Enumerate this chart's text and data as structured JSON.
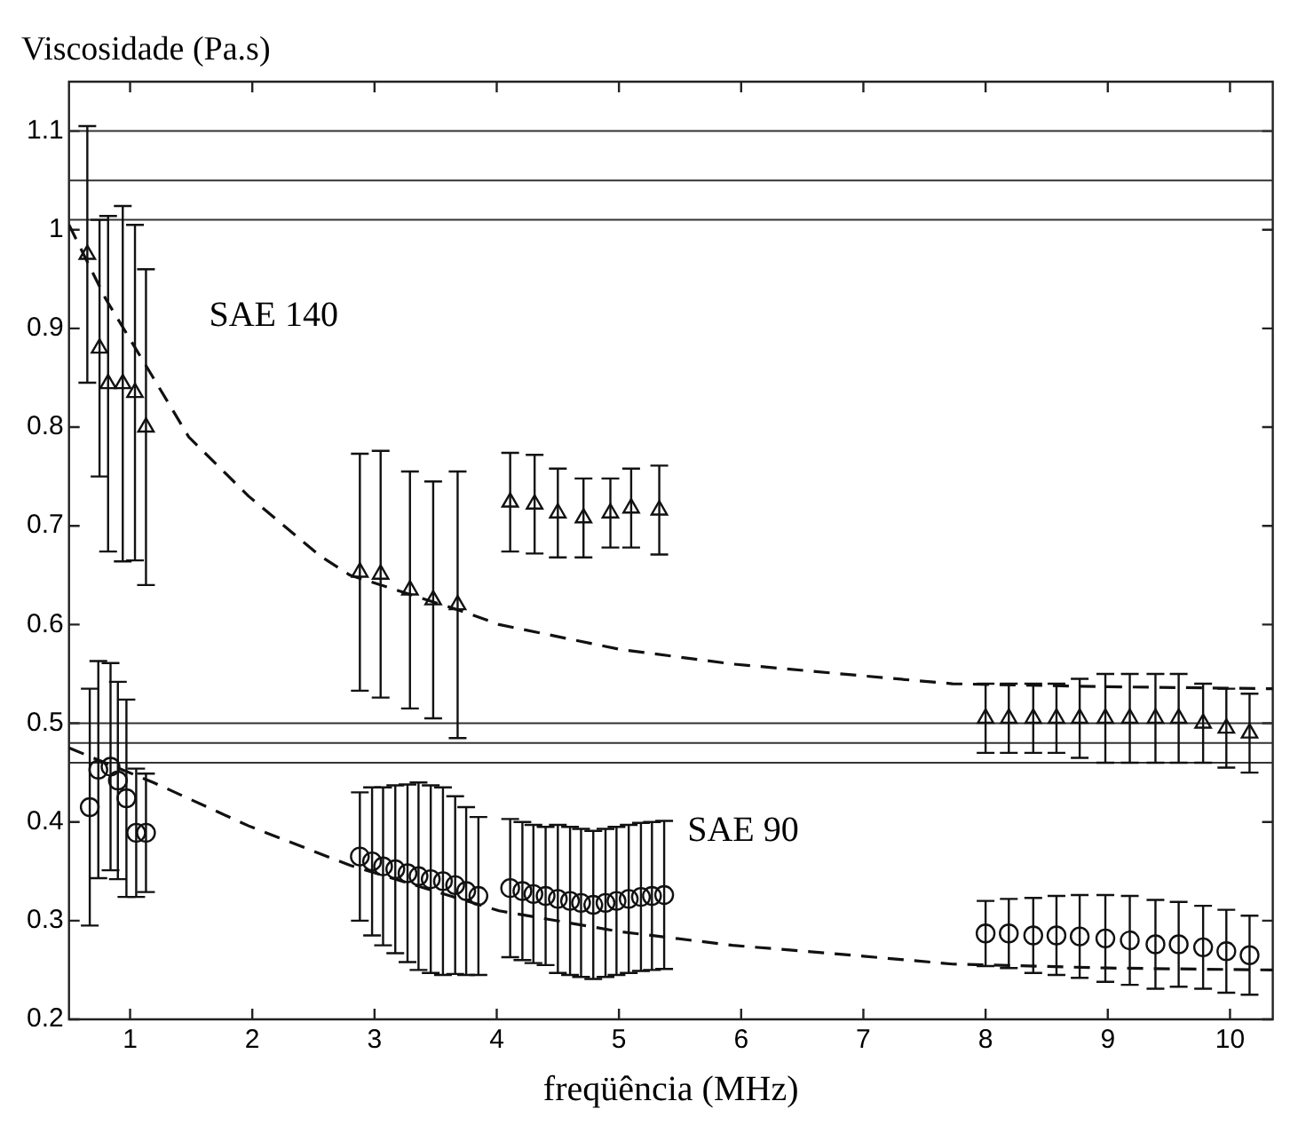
{
  "chart_data": {
    "type": "scatter",
    "xlabel": "freqüência (MHz)",
    "ylabel": "Viscosidade (Pa.s)",
    "xlim": [
      0.5,
      10.35
    ],
    "ylim": [
      0.2,
      1.15
    ],
    "xticks": [
      1,
      2,
      3,
      4,
      5,
      6,
      7,
      8,
      9,
      10
    ],
    "yticks": [
      0.2,
      0.3,
      0.4,
      0.5,
      0.6,
      0.7,
      0.8,
      0.9,
      1,
      1.1
    ],
    "grid": false,
    "legend": false,
    "annotations": [
      "SAE 140",
      "SAE 90"
    ],
    "ref_lines": [
      {
        "axis": "y",
        "value": 1.1,
        "color": "#333333"
      },
      {
        "axis": "y",
        "value": 1.05,
        "color": "#333333"
      },
      {
        "axis": "y",
        "value": 1.01,
        "color": "#333333"
      },
      {
        "axis": "y",
        "value": 0.5,
        "color": "#333333"
      },
      {
        "axis": "y",
        "value": 0.48,
        "color": "#333333"
      },
      {
        "axis": "y",
        "value": 0.46,
        "color": "#333333"
      }
    ],
    "series": [
      {
        "type": "scatter",
        "marker": "triangle",
        "color": "#111111",
        "x": [
          0.65,
          0.75,
          0.82,
          0.94,
          1.04,
          1.13,
          2.88,
          3.05,
          3.29,
          3.48,
          3.68,
          4.11,
          4.31,
          4.5,
          4.71,
          4.93,
          5.1,
          5.33,
          8.0,
          8.19,
          8.39,
          8.58,
          8.77,
          8.98,
          9.18,
          9.39,
          9.58,
          9.78,
          9.97,
          10.16
        ],
        "values": [
          0.975,
          0.88,
          0.844,
          0.844,
          0.835,
          0.8,
          0.653,
          0.651,
          0.635,
          0.625,
          0.62,
          0.724,
          0.722,
          0.713,
          0.708,
          0.713,
          0.718,
          0.716,
          0.505,
          0.505,
          0.505,
          0.505,
          0.505,
          0.505,
          0.505,
          0.505,
          0.505,
          0.5,
          0.495,
          0.49
        ],
        "errors": [
          0.13,
          0.13,
          0.17,
          0.18,
          0.17,
          0.16,
          0.12,
          0.125,
          0.12,
          0.12,
          0.135,
          0.05,
          0.05,
          0.045,
          0.04,
          0.035,
          0.04,
          0.045,
          0.035,
          0.035,
          0.035,
          0.035,
          0.04,
          0.045,
          0.045,
          0.045,
          0.045,
          0.04,
          0.04,
          0.04
        ]
      },
      {
        "type": "scatter",
        "marker": "circle",
        "color": "#111111",
        "x": [
          0.67,
          0.74,
          0.84,
          0.9,
          0.97,
          1.05,
          1.13,
          2.88,
          2.98,
          3.07,
          3.17,
          3.27,
          3.36,
          3.46,
          3.56,
          3.66,
          3.75,
          3.85,
          4.11,
          4.21,
          4.3,
          4.4,
          4.5,
          4.6,
          4.69,
          4.79,
          4.89,
          4.98,
          5.08,
          5.18,
          5.27,
          5.37,
          8.0,
          8.19,
          8.39,
          8.58,
          8.77,
          8.98,
          9.18,
          9.39,
          9.58,
          9.78,
          9.97,
          10.16
        ],
        "values": [
          0.415,
          0.453,
          0.456,
          0.442,
          0.424,
          0.389,
          0.389,
          0.365,
          0.36,
          0.355,
          0.352,
          0.348,
          0.345,
          0.342,
          0.34,
          0.336,
          0.33,
          0.325,
          0.333,
          0.33,
          0.327,
          0.325,
          0.322,
          0.32,
          0.318,
          0.316,
          0.318,
          0.32,
          0.322,
          0.324,
          0.325,
          0.326,
          0.287,
          0.287,
          0.285,
          0.285,
          0.284,
          0.282,
          0.28,
          0.276,
          0.276,
          0.273,
          0.269,
          0.265
        ],
        "errors": [
          0.12,
          0.11,
          0.105,
          0.1,
          0.1,
          0.065,
          0.06,
          0.065,
          0.075,
          0.08,
          0.085,
          0.09,
          0.095,
          0.095,
          0.095,
          0.09,
          0.085,
          0.08,
          0.07,
          0.07,
          0.07,
          0.07,
          0.075,
          0.075,
          0.075,
          0.075,
          0.075,
          0.075,
          0.075,
          0.075,
          0.075,
          0.075,
          0.033,
          0.035,
          0.038,
          0.04,
          0.042,
          0.044,
          0.045,
          0.045,
          0.043,
          0.042,
          0.042,
          0.04
        ]
      },
      {
        "type": "line",
        "marker": "none",
        "line_style": "dashed",
        "color": "#111111",
        "x": [
          0.5,
          0.8,
          1.19,
          1.48,
          1.97,
          2.55,
          2.8,
          3.68,
          4.02,
          5.0,
          5.93,
          7.0,
          7.73,
          9.0,
          10.35
        ],
        "values": [
          1.005,
          0.93,
          0.85,
          0.79,
          0.73,
          0.67,
          0.65,
          0.615,
          0.6,
          0.575,
          0.56,
          0.548,
          0.54,
          0.537,
          0.535
        ]
      },
      {
        "type": "line",
        "marker": "none",
        "line_style": "dashed",
        "color": "#111111",
        "x": [
          0.5,
          1.19,
          1.97,
          2.8,
          4.02,
          5.0,
          5.93,
          7.0,
          7.73,
          9.0,
          10.35
        ],
        "values": [
          0.475,
          0.44,
          0.396,
          0.356,
          0.31,
          0.289,
          0.275,
          0.264,
          0.256,
          0.252,
          0.25
        ]
      }
    ]
  }
}
